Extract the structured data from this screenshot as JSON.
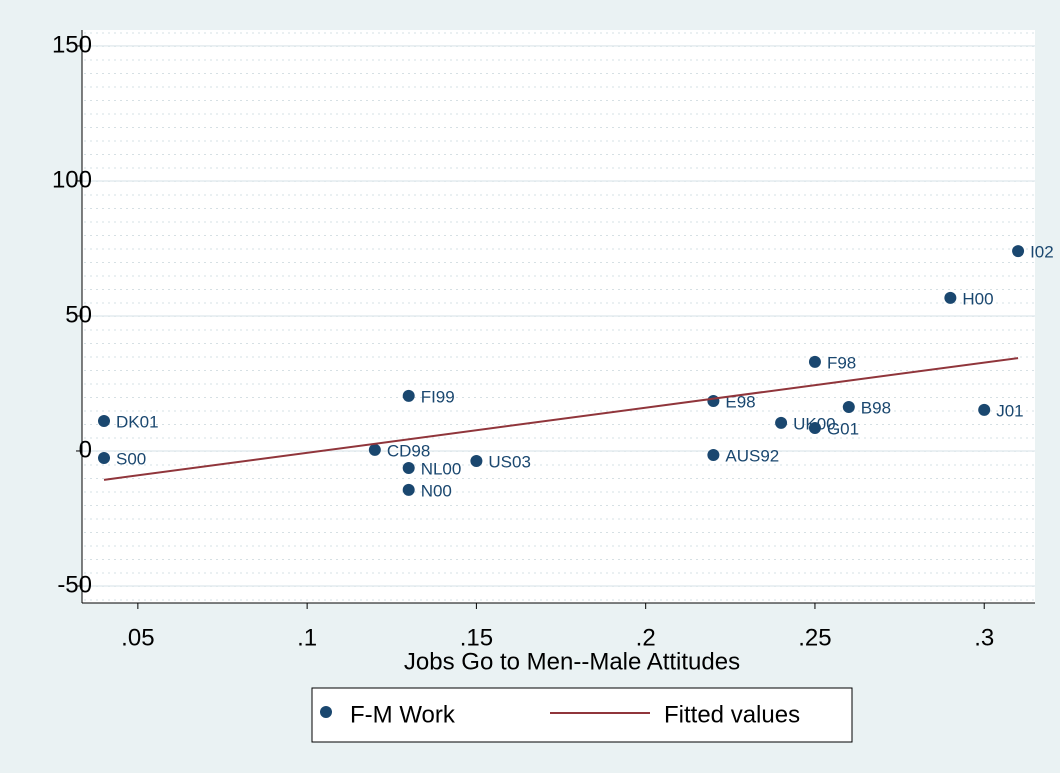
{
  "chart_data": {
    "type": "scatter",
    "x_label": "Jobs Go to Men--Male Attitudes",
    "xlim": [
      0.0335,
      0.315
    ],
    "ylim": [
      -56.3,
      155.9
    ],
    "xticks": [
      {
        "value": 0.05,
        "label": ".05"
      },
      {
        "value": 0.1,
        "label": ".1"
      },
      {
        "value": 0.15,
        "label": ".15"
      },
      {
        "value": 0.2,
        "label": ".2"
      },
      {
        "value": 0.25,
        "label": ".25"
      },
      {
        "value": 0.3,
        "label": ".3"
      }
    ],
    "yticks": [
      -50,
      0,
      50,
      100,
      150
    ],
    "grid": true,
    "legend": "bottom",
    "series": [
      {
        "name": "F-M Work",
        "type": "scatter",
        "color": "#1a476f",
        "x": [
          0.04,
          0.04,
          0.13,
          0.12,
          0.13,
          0.13,
          0.15,
          0.22,
          0.22,
          0.24,
          0.25,
          0.25,
          0.26,
          0.3,
          0.29,
          0.31
        ],
        "values": [
          11.1,
          -2.6,
          20.4,
          0.4,
          -6.3,
          -14.4,
          -3.7,
          18.5,
          -1.5,
          10.4,
          33,
          8.5,
          16.3,
          15.2,
          56.7,
          74
        ],
        "labels": [
          "DK01",
          "S00",
          "FI99",
          "CD98",
          "NL00",
          "N00",
          "US03",
          "E98",
          "AUS92",
          "UK00",
          "F98",
          "G01",
          "B98",
          "J01",
          "H00",
          "I02"
        ]
      },
      {
        "name": "Fitted values",
        "type": "line",
        "color": "#90353b",
        "x": [
          0.04,
          0.31
        ],
        "values": [
          -10.7,
          34.4
        ]
      }
    ]
  }
}
